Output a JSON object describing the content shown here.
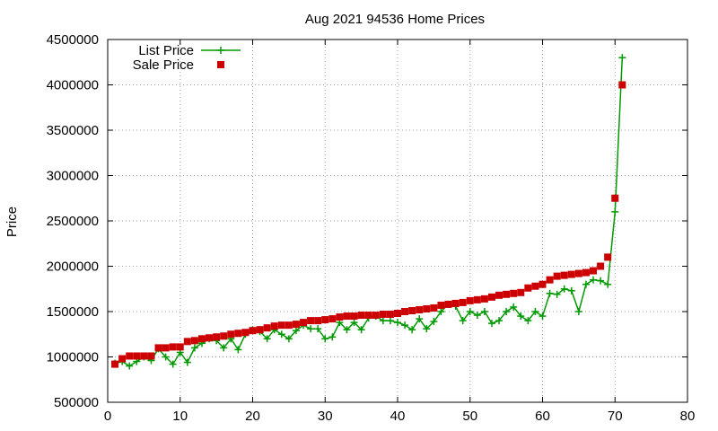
{
  "chart_data": {
    "type": "line",
    "title": "Aug 2021 94536 Home Prices",
    "xlabel": "",
    "ylabel": "Price",
    "xlim": [
      0,
      80
    ],
    "ylim": [
      500000,
      4500000
    ],
    "x_ticks": [
      0,
      10,
      20,
      30,
      40,
      50,
      60,
      70,
      80
    ],
    "y_ticks": [
      500000,
      1000000,
      1500000,
      2000000,
      2500000,
      3000000,
      3500000,
      4000000,
      4500000
    ],
    "grid": true,
    "legend_position": "top-left",
    "colors": {
      "list": "#009900",
      "sale": "#cc0000"
    },
    "x": [
      1,
      2,
      3,
      4,
      5,
      6,
      7,
      8,
      9,
      10,
      11,
      12,
      13,
      14,
      15,
      16,
      17,
      18,
      19,
      20,
      21,
      22,
      23,
      24,
      25,
      26,
      27,
      28,
      29,
      30,
      31,
      32,
      33,
      34,
      35,
      36,
      37,
      38,
      39,
      40,
      41,
      42,
      43,
      44,
      45,
      46,
      47,
      48,
      49,
      50,
      51,
      52,
      53,
      54,
      55,
      56,
      57,
      58,
      59,
      60,
      61,
      62,
      63,
      64,
      65,
      66,
      67,
      68,
      69,
      70,
      71
    ],
    "series": [
      {
        "name": "List Price",
        "style": "linespoints",
        "values": [
          930000,
          950000,
          900000,
          950000,
          1000000,
          960000,
          1090000,
          1000000,
          920000,
          1050000,
          940000,
          1100000,
          1150000,
          1200000,
          1180000,
          1100000,
          1200000,
          1080000,
          1250000,
          1300000,
          1280000,
          1200000,
          1300000,
          1250000,
          1200000,
          1290000,
          1350000,
          1310000,
          1310000,
          1200000,
          1220000,
          1380000,
          1300000,
          1380000,
          1300000,
          1430000,
          1450000,
          1400000,
          1400000,
          1380000,
          1350000,
          1300000,
          1420000,
          1310000,
          1390000,
          1500000,
          1580000,
          1560000,
          1400000,
          1500000,
          1460000,
          1500000,
          1370000,
          1400000,
          1500000,
          1550000,
          1450000,
          1400000,
          1500000,
          1450000,
          1700000,
          1690000,
          1750000,
          1730000,
          1500000,
          1800000,
          1850000,
          1840000,
          1800000,
          2600000,
          4300000
        ]
      },
      {
        "name": "Sale Price",
        "style": "points",
        "values": [
          920000,
          980000,
          1010000,
          1010000,
          1010000,
          1010000,
          1100000,
          1100000,
          1110000,
          1110000,
          1170000,
          1180000,
          1200000,
          1210000,
          1220000,
          1230000,
          1250000,
          1260000,
          1270000,
          1290000,
          1300000,
          1320000,
          1340000,
          1350000,
          1350000,
          1360000,
          1380000,
          1400000,
          1400000,
          1410000,
          1420000,
          1440000,
          1450000,
          1450000,
          1460000,
          1460000,
          1460000,
          1470000,
          1470000,
          1480000,
          1500000,
          1510000,
          1520000,
          1530000,
          1540000,
          1570000,
          1580000,
          1590000,
          1600000,
          1620000,
          1630000,
          1640000,
          1660000,
          1680000,
          1690000,
          1700000,
          1710000,
          1760000,
          1780000,
          1800000,
          1850000,
          1890000,
          1900000,
          1910000,
          1920000,
          1930000,
          1950000,
          2000000,
          2100000,
          2750000,
          4000000
        ]
      }
    ]
  }
}
